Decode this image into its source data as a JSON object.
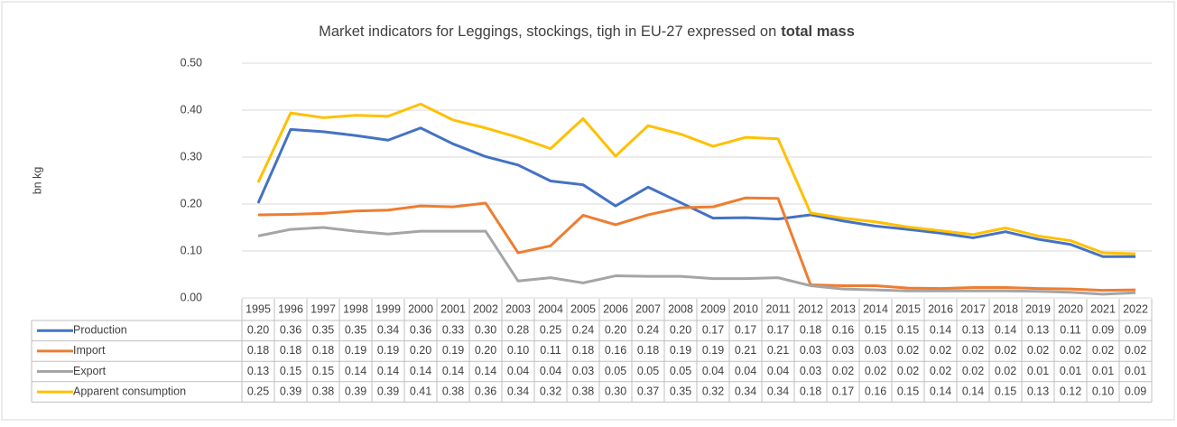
{
  "chart_data": {
    "type": "line",
    "title": "Market indicators for Leggings, stockings, tigh in EU-27 expressed on",
    "title_emphasis": "total mass",
    "y_label": "bn kg",
    "categories": [
      "1995",
      "1996",
      "1997",
      "1998",
      "1999",
      "2000",
      "2001",
      "2002",
      "2003",
      "2004",
      "2005",
      "2006",
      "2007",
      "2008",
      "2009",
      "2010",
      "2011",
      "2012",
      "2013",
      "2014",
      "2015",
      "2016",
      "2017",
      "2018",
      "2019",
      "2020",
      "2021",
      "2022"
    ],
    "series": [
      {
        "name": "Production",
        "color": "#4472c4",
        "values": [
          0.202,
          0.359,
          0.354,
          0.346,
          0.336,
          0.362,
          0.328,
          0.301,
          0.283,
          0.249,
          0.241,
          0.196,
          0.236,
          0.203,
          0.17,
          0.171,
          0.168,
          0.177,
          0.164,
          0.153,
          0.146,
          0.138,
          0.128,
          0.141,
          0.125,
          0.114,
          0.088,
          0.088
        ],
        "value_labels": [
          "0.20",
          "0.36",
          "0.35",
          "0.35",
          "0.34",
          "0.36",
          "0.33",
          "0.30",
          "0.28",
          "0.25",
          "0.24",
          "0.20",
          "0.24",
          "0.20",
          "0.17",
          "0.17",
          "0.17",
          "0.18",
          "0.16",
          "0.15",
          "0.15",
          "0.14",
          "0.13",
          "0.14",
          "0.13",
          "0.11",
          "0.09",
          "0.09"
        ]
      },
      {
        "name": "Import",
        "color": "#ed7d31",
        "values": [
          0.177,
          0.178,
          0.18,
          0.185,
          0.187,
          0.196,
          0.194,
          0.202,
          0.096,
          0.111,
          0.176,
          0.156,
          0.177,
          0.192,
          0.194,
          0.213,
          0.212,
          0.028,
          0.026,
          0.026,
          0.021,
          0.02,
          0.022,
          0.022,
          0.02,
          0.019,
          0.016,
          0.017
        ],
        "value_labels": [
          "0.18",
          "0.18",
          "0.18",
          "0.19",
          "0.19",
          "0.20",
          "0.19",
          "0.20",
          "0.10",
          "0.11",
          "0.18",
          "0.16",
          "0.18",
          "0.19",
          "0.19",
          "0.21",
          "0.21",
          "0.03",
          "0.03",
          "0.03",
          "0.02",
          "0.02",
          "0.02",
          "0.02",
          "0.02",
          "0.02",
          "0.02",
          "0.02"
        ]
      },
      {
        "name": "Export",
        "color": "#a5a5a5",
        "values": [
          0.132,
          0.146,
          0.15,
          0.142,
          0.136,
          0.142,
          0.142,
          0.142,
          0.036,
          0.043,
          0.032,
          0.047,
          0.046,
          0.046,
          0.041,
          0.041,
          0.043,
          0.026,
          0.019,
          0.017,
          0.015,
          0.015,
          0.015,
          0.015,
          0.014,
          0.012,
          0.008,
          0.011
        ],
        "value_labels": [
          "0.13",
          "0.15",
          "0.15",
          "0.14",
          "0.14",
          "0.14",
          "0.14",
          "0.14",
          "0.04",
          "0.04",
          "0.03",
          "0.05",
          "0.05",
          "0.05",
          "0.04",
          "0.04",
          "0.04",
          "0.03",
          "0.02",
          "0.02",
          "0.02",
          "0.02",
          "0.02",
          "0.02",
          "0.01",
          "0.01",
          "0.01",
          "0.01"
        ]
      },
      {
        "name": "Apparent consumption",
        "color": "#ffc000",
        "values": [
          0.246,
          0.394,
          0.384,
          0.389,
          0.387,
          0.413,
          0.379,
          0.362,
          0.342,
          0.318,
          0.382,
          0.302,
          0.367,
          0.349,
          0.323,
          0.342,
          0.339,
          0.181,
          0.17,
          0.162,
          0.151,
          0.143,
          0.135,
          0.149,
          0.132,
          0.122,
          0.096,
          0.094
        ],
        "value_labels": [
          "0.25",
          "0.39",
          "0.38",
          "0.39",
          "0.39",
          "0.41",
          "0.38",
          "0.36",
          "0.34",
          "0.32",
          "0.38",
          "0.30",
          "0.37",
          "0.35",
          "0.32",
          "0.34",
          "0.34",
          "0.18",
          "0.17",
          "0.16",
          "0.15",
          "0.14",
          "0.14",
          "0.15",
          "0.13",
          "0.12",
          "0.10",
          "0.09"
        ]
      }
    ],
    "ylim": [
      0,
      0.5
    ],
    "yticks": [
      {
        "value": 0,
        "label": "0.00"
      },
      {
        "value": 0.1,
        "label": "0.10"
      },
      {
        "value": 0.2,
        "label": "0.20"
      },
      {
        "value": 0.3,
        "label": "0.30"
      },
      {
        "value": 0.4,
        "label": "0.40"
      },
      {
        "value": 0.5,
        "label": "0.50"
      }
    ],
    "grid": true,
    "legend": "table"
  }
}
